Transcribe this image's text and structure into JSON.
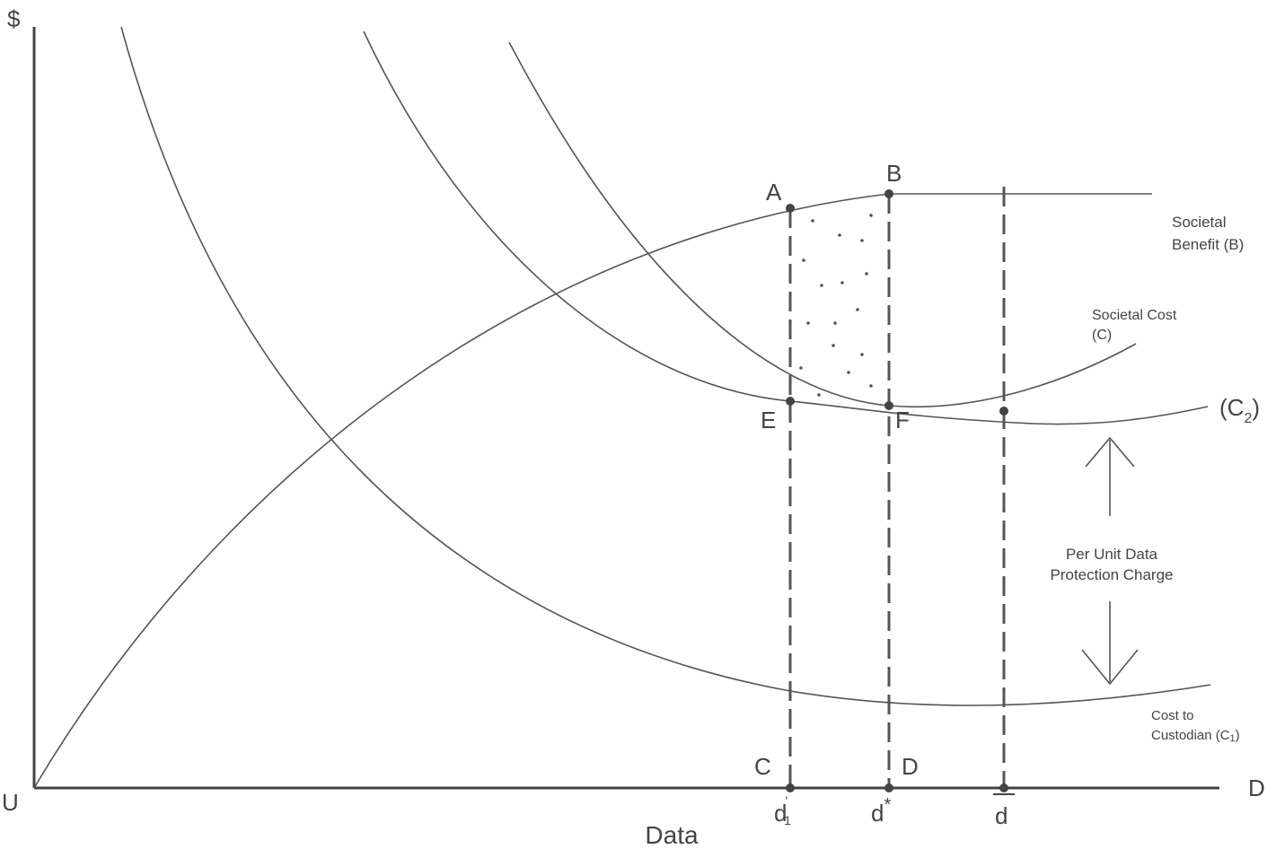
{
  "axes": {
    "y_label": "$",
    "origin": "U",
    "x_end": "D",
    "x_label": "Data"
  },
  "points": [
    {
      "label": "A"
    },
    {
      "label": "B"
    },
    {
      "label": "C"
    },
    {
      "label": "D"
    },
    {
      "label": "E"
    },
    {
      "label": "F"
    }
  ],
  "x_markers": [
    {
      "base": "d",
      "sub": "1",
      "sup": "'"
    },
    {
      "base": "d",
      "sup": "*"
    },
    {
      "base": "d"
    }
  ],
  "curves": {
    "benefit": [
      "Societal",
      "Benefit (B)"
    ],
    "societal_cost": [
      "Societal Cost",
      "(C)"
    ],
    "c2": {
      "open": "(C",
      "sub": "2",
      "close": ")"
    },
    "custodian": {
      "line1": "Cost to",
      "line2": "Custodian (C",
      "sub": "1",
      "close": ")"
    }
  },
  "annotation": [
    "Per Unit Data",
    "Protection Charge"
  ]
}
